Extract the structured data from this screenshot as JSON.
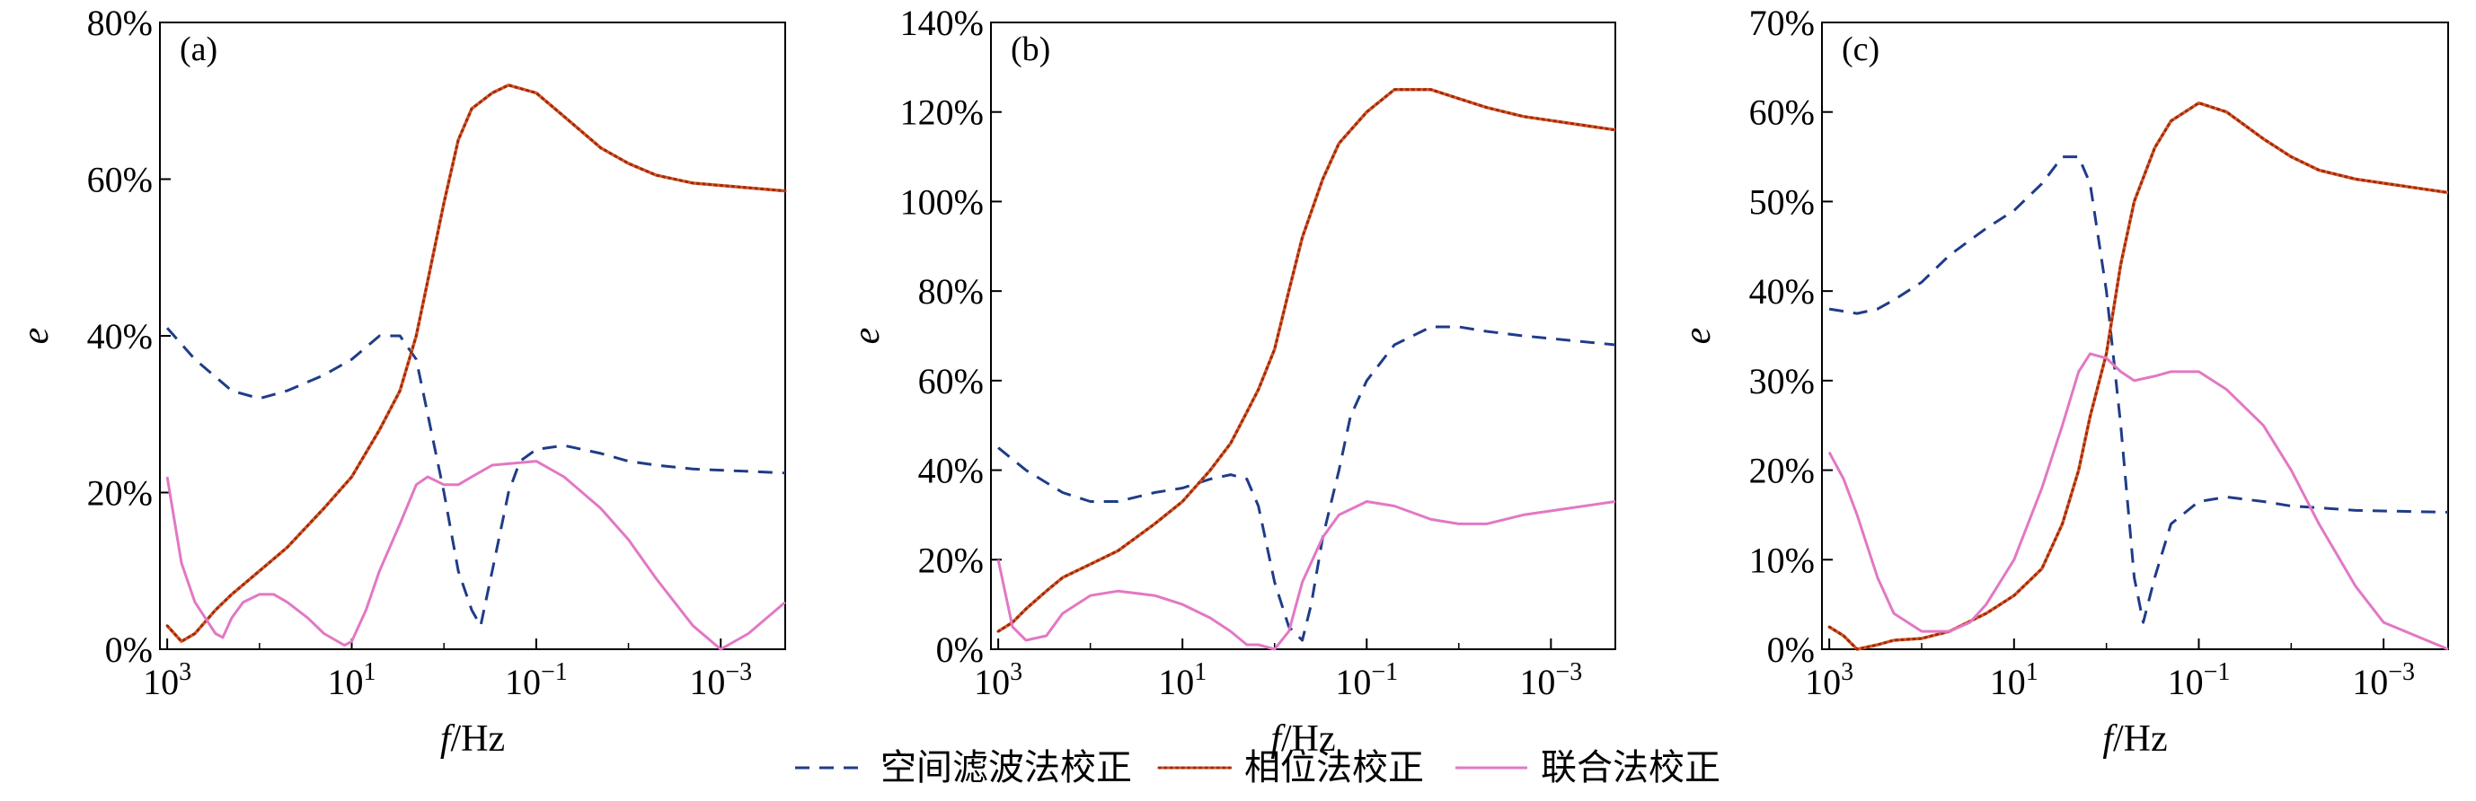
{
  "chart_data": [
    {
      "type": "line",
      "panel_label": "(a)",
      "xscale": "log-reversed",
      "xlim": [
        1200,
        0.0002
      ],
      "xtick_labels": [
        {
          "x": 1000,
          "base": "10",
          "exp": "3"
        },
        {
          "x": 10,
          "base": "10",
          "exp": "1"
        },
        {
          "x": 0.1,
          "base": "10",
          "exp": "−1"
        },
        {
          "x": 0.001,
          "base": "10",
          "exp": "−3"
        }
      ],
      "ylim": [
        0,
        80
      ],
      "yticks": [
        0,
        20,
        40,
        60,
        80
      ],
      "ytick_labels": [
        "0%",
        "20%",
        "40%",
        "60%",
        "80%"
      ],
      "xlabel_italic": "f",
      "xlabel_rest": "/Hz",
      "ylabel": "e",
      "series": [
        {
          "name": "空间滤波法校正",
          "style": "dashed",
          "color": "#1f3c88",
          "points": [
            [
              1000,
              41
            ],
            [
              500,
              37
            ],
            [
              200,
              33
            ],
            [
              100,
              32
            ],
            [
              50,
              33
            ],
            [
              20,
              35
            ],
            [
              10,
              37
            ],
            [
              5,
              40
            ],
            [
              3,
              40
            ],
            [
              2,
              37
            ],
            [
              1.5,
              30
            ],
            [
              1,
              20
            ],
            [
              0.7,
              10
            ],
            [
              0.5,
              5
            ],
            [
              0.4,
              3
            ],
            [
              0.3,
              10
            ],
            [
              0.2,
              20
            ],
            [
              0.15,
              24
            ],
            [
              0.1,
              25.5
            ],
            [
              0.05,
              26
            ],
            [
              0.02,
              25
            ],
            [
              0.01,
              24
            ],
            [
              0.005,
              23.5
            ],
            [
              0.002,
              23
            ],
            [
              0.0002,
              22.5
            ]
          ]
        },
        {
          "name": "相位法校正",
          "style": "dotted-line",
          "color": "#e05a2a",
          "points": [
            [
              1000,
              3
            ],
            [
              700,
              1
            ],
            [
              500,
              2
            ],
            [
              300,
              5
            ],
            [
              200,
              7
            ],
            [
              100,
              10
            ],
            [
              50,
              13
            ],
            [
              20,
              18
            ],
            [
              10,
              22
            ],
            [
              5,
              28
            ],
            [
              3,
              33
            ],
            [
              2,
              40
            ],
            [
              1.5,
              47
            ],
            [
              1,
              57
            ],
            [
              0.7,
              65
            ],
            [
              0.5,
              69
            ],
            [
              0.3,
              71
            ],
            [
              0.2,
              72
            ],
            [
              0.1,
              71
            ],
            [
              0.05,
              68
            ],
            [
              0.02,
              64
            ],
            [
              0.01,
              62
            ],
            [
              0.005,
              60.5
            ],
            [
              0.002,
              59.5
            ],
            [
              0.0002,
              58.5
            ]
          ]
        },
        {
          "name": "联合法校正",
          "style": "solid",
          "color": "#e278c4",
          "points": [
            [
              1000,
              22
            ],
            [
              700,
              11
            ],
            [
              500,
              6
            ],
            [
              300,
              2
            ],
            [
              250,
              1.5
            ],
            [
              200,
              4
            ],
            [
              150,
              6
            ],
            [
              100,
              7
            ],
            [
              70,
              7
            ],
            [
              50,
              6
            ],
            [
              30,
              4
            ],
            [
              20,
              2
            ],
            [
              12,
              0.5
            ],
            [
              10,
              1
            ],
            [
              7,
              5
            ],
            [
              5,
              10
            ],
            [
              3,
              16
            ],
            [
              2,
              21
            ],
            [
              1.5,
              22
            ],
            [
              1,
              21
            ],
            [
              0.7,
              21
            ],
            [
              0.5,
              22
            ],
            [
              0.3,
              23.5
            ],
            [
              0.1,
              24
            ],
            [
              0.05,
              22
            ],
            [
              0.02,
              18
            ],
            [
              0.01,
              14
            ],
            [
              0.005,
              9
            ],
            [
              0.002,
              3
            ],
            [
              0.001,
              0
            ],
            [
              0.0005,
              2
            ],
            [
              0.0002,
              6
            ]
          ]
        }
      ]
    },
    {
      "type": "line",
      "panel_label": "(b)",
      "xscale": "log-reversed",
      "xlim": [
        1200,
        0.0002
      ],
      "xtick_labels": [
        {
          "x": 1000,
          "base": "10",
          "exp": "3"
        },
        {
          "x": 10,
          "base": "10",
          "exp": "1"
        },
        {
          "x": 0.1,
          "base": "10",
          "exp": "−1"
        },
        {
          "x": 0.001,
          "base": "10",
          "exp": "−3"
        }
      ],
      "ylim": [
        0,
        140
      ],
      "yticks": [
        0,
        20,
        40,
        60,
        80,
        100,
        120,
        140
      ],
      "ytick_labels": [
        "0%",
        "20%",
        "40%",
        "60%",
        "80%",
        "100%",
        "120%",
        "140%"
      ],
      "xlabel_italic": "f",
      "xlabel_rest": "/Hz",
      "ylabel": "e",
      "series": [
        {
          "name": "空间滤波法校正",
          "style": "dashed",
          "color": "#1f3c88",
          "points": [
            [
              1000,
              45
            ],
            [
              500,
              40
            ],
            [
              200,
              35
            ],
            [
              100,
              33
            ],
            [
              50,
              33
            ],
            [
              20,
              35
            ],
            [
              10,
              36
            ],
            [
              5,
              38
            ],
            [
              3,
              39
            ],
            [
              2,
              38
            ],
            [
              1.5,
              32
            ],
            [
              1,
              15
            ],
            [
              0.7,
              5
            ],
            [
              0.5,
              2
            ],
            [
              0.4,
              10
            ],
            [
              0.3,
              25
            ],
            [
              0.2,
              40
            ],
            [
              0.15,
              52
            ],
            [
              0.1,
              60
            ],
            [
              0.05,
              68
            ],
            [
              0.02,
              72
            ],
            [
              0.01,
              72
            ],
            [
              0.005,
              71
            ],
            [
              0.002,
              70
            ],
            [
              0.0002,
              68
            ]
          ]
        },
        {
          "name": "相位法校正",
          "style": "dotted-line",
          "color": "#e05a2a",
          "points": [
            [
              1000,
              4
            ],
            [
              700,
              6
            ],
            [
              500,
              9
            ],
            [
              300,
              13
            ],
            [
              200,
              16
            ],
            [
              100,
              19
            ],
            [
              50,
              22
            ],
            [
              20,
              28
            ],
            [
              10,
              33
            ],
            [
              5,
              40
            ],
            [
              3,
              46
            ],
            [
              2,
              53
            ],
            [
              1.5,
              58
            ],
            [
              1,
              67
            ],
            [
              0.7,
              80
            ],
            [
              0.5,
              92
            ],
            [
              0.3,
              105
            ],
            [
              0.2,
              113
            ],
            [
              0.1,
              120
            ],
            [
              0.05,
              125
            ],
            [
              0.02,
              125
            ],
            [
              0.01,
              123
            ],
            [
              0.005,
              121
            ],
            [
              0.002,
              119
            ],
            [
              0.0002,
              116
            ]
          ]
        },
        {
          "name": "联合法校正",
          "style": "solid",
          "color": "#e278c4",
          "points": [
            [
              1000,
              20
            ],
            [
              700,
              5
            ],
            [
              500,
              2
            ],
            [
              300,
              3
            ],
            [
              200,
              8
            ],
            [
              100,
              12
            ],
            [
              50,
              13
            ],
            [
              20,
              12
            ],
            [
              10,
              10
            ],
            [
              5,
              7
            ],
            [
              3,
              4
            ],
            [
              2,
              1
            ],
            [
              1.5,
              1
            ],
            [
              1,
              0
            ],
            [
              0.7,
              4
            ],
            [
              0.5,
              15
            ],
            [
              0.3,
              25
            ],
            [
              0.2,
              30
            ],
            [
              0.1,
              33
            ],
            [
              0.05,
              32
            ],
            [
              0.02,
              29
            ],
            [
              0.01,
              28
            ],
            [
              0.005,
              28
            ],
            [
              0.002,
              30
            ],
            [
              0.0002,
              33
            ]
          ]
        }
      ]
    },
    {
      "type": "line",
      "panel_label": "(c)",
      "xscale": "log-reversed",
      "xlim": [
        1200,
        0.0002
      ],
      "xtick_labels": [
        {
          "x": 1000,
          "base": "10",
          "exp": "3"
        },
        {
          "x": 10,
          "base": "10",
          "exp": "1"
        },
        {
          "x": 0.1,
          "base": "10",
          "exp": "−1"
        },
        {
          "x": 0.001,
          "base": "10",
          "exp": "−3"
        }
      ],
      "ylim": [
        0,
        70
      ],
      "yticks": [
        0,
        10,
        20,
        30,
        40,
        50,
        60,
        70
      ],
      "ytick_labels": [
        "0%",
        "10%",
        "20%",
        "30%",
        "40%",
        "50%",
        "60%",
        "70%"
      ],
      "xlabel_italic": "f",
      "xlabel_rest": "/Hz",
      "ylabel": "e",
      "series": [
        {
          "name": "空间滤波法校正",
          "style": "dashed",
          "color": "#1f3c88",
          "points": [
            [
              1000,
              38
            ],
            [
              500,
              37.5
            ],
            [
              300,
              38
            ],
            [
              200,
              39
            ],
            [
              100,
              41
            ],
            [
              50,
              44
            ],
            [
              20,
              47
            ],
            [
              10,
              49
            ],
            [
              5,
              52
            ],
            [
              3,
              55
            ],
            [
              2,
              55
            ],
            [
              1.5,
              52
            ],
            [
              1,
              40
            ],
            [
              0.7,
              25
            ],
            [
              0.5,
              8
            ],
            [
              0.4,
              3
            ],
            [
              0.3,
              8
            ],
            [
              0.2,
              14
            ],
            [
              0.1,
              16.5
            ],
            [
              0.05,
              17
            ],
            [
              0.02,
              16.5
            ],
            [
              0.01,
              16
            ],
            [
              0.005,
              15.8
            ],
            [
              0.002,
              15.5
            ],
            [
              0.0002,
              15.3
            ]
          ]
        },
        {
          "name": "相位法校正",
          "style": "dotted-line",
          "color": "#e05a2a",
          "points": [
            [
              1000,
              2.5
            ],
            [
              700,
              1.5
            ],
            [
              500,
              0
            ],
            [
              300,
              0.5
            ],
            [
              200,
              1
            ],
            [
              100,
              1.2
            ],
            [
              50,
              2
            ],
            [
              20,
              4
            ],
            [
              10,
              6
            ],
            [
              5,
              9
            ],
            [
              3,
              14
            ],
            [
              2,
              20
            ],
            [
              1.5,
              26
            ],
            [
              1,
              33
            ],
            [
              0.7,
              43
            ],
            [
              0.5,
              50
            ],
            [
              0.3,
              56
            ],
            [
              0.2,
              59
            ],
            [
              0.1,
              61
            ],
            [
              0.05,
              60
            ],
            [
              0.02,
              57
            ],
            [
              0.01,
              55
            ],
            [
              0.005,
              53.5
            ],
            [
              0.002,
              52.5
            ],
            [
              0.0002,
              51
            ]
          ]
        },
        {
          "name": "联合法校正",
          "style": "solid",
          "color": "#e278c4",
          "points": [
            [
              1000,
              22
            ],
            [
              700,
              19
            ],
            [
              500,
              15
            ],
            [
              300,
              8
            ],
            [
              200,
              4
            ],
            [
              100,
              2
            ],
            [
              50,
              2
            ],
            [
              30,
              3
            ],
            [
              20,
              5
            ],
            [
              10,
              10
            ],
            [
              5,
              18
            ],
            [
              3,
              25
            ],
            [
              2,
              31
            ],
            [
              1.5,
              33
            ],
            [
              1,
              32.5
            ],
            [
              0.7,
              31
            ],
            [
              0.5,
              30
            ],
            [
              0.3,
              30.5
            ],
            [
              0.2,
              31
            ],
            [
              0.1,
              31
            ],
            [
              0.05,
              29
            ],
            [
              0.02,
              25
            ],
            [
              0.01,
              20
            ],
            [
              0.005,
              14
            ],
            [
              0.002,
              7
            ],
            [
              0.001,
              3
            ],
            [
              0.0002,
              0
            ]
          ]
        }
      ]
    }
  ],
  "legend": {
    "placement": "bottom-center",
    "items": [
      {
        "label": "空间滤波法校正",
        "style": "dashed",
        "color": "#1f3c88"
      },
      {
        "label": "相位法校正",
        "style": "dotted-line",
        "color": "#e05a2a"
      },
      {
        "label": "联合法校正",
        "style": "solid",
        "color": "#e278c4"
      }
    ]
  }
}
